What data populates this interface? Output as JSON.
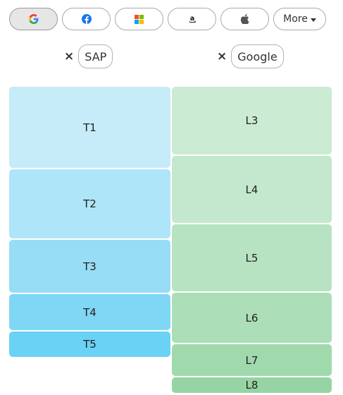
{
  "toolbar": {
    "buttons": [
      {
        "name": "google-icon",
        "label": "G"
      },
      {
        "name": "facebook-icon",
        "label": "f"
      },
      {
        "name": "microsoft-icon",
        "label": ""
      },
      {
        "name": "amazon-icon",
        "label": "a"
      },
      {
        "name": "apple-icon",
        "label": ""
      }
    ],
    "more_label": "More"
  },
  "columns": [
    {
      "remove_icon": "×",
      "label": "SAP"
    },
    {
      "remove_icon": "×",
      "label": "Google"
    }
  ],
  "left_tiles": [
    "T1",
    "T2",
    "T3",
    "T4",
    "T5"
  ],
  "right_tiles": [
    "L3",
    "L4",
    "L5",
    "L6",
    "L7",
    "L8"
  ],
  "colors": {
    "blue_tiles": [
      "#c6ebf9",
      "#afe5f8",
      "#97ddf6",
      "#80d6f5",
      "#6ad2f4"
    ],
    "green_tiles": [
      "#cbebd3",
      "#c4e8cd",
      "#b8e3c3",
      "#acdeb8",
      "#9fd9ac",
      "#96d4a4"
    ]
  }
}
